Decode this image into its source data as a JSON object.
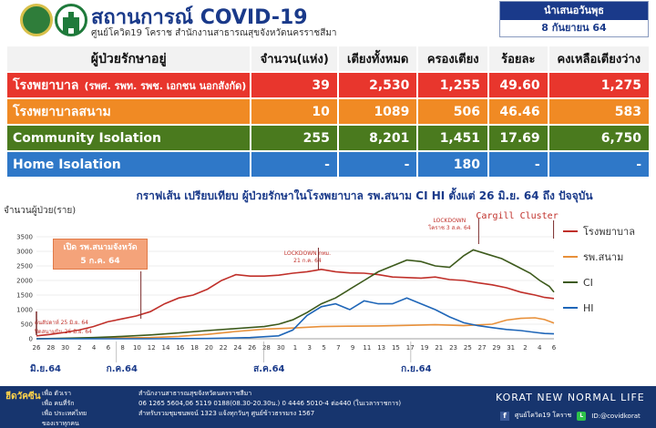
{
  "header": {
    "title": "สถานการณ์ COVID-19",
    "subtitle": "ศูนย์โควิด19 โคราช สำนักงานสาธารณสุขจังหวัดนครราชสีมา",
    "date_label": "นำเสนอวันพุธ",
    "date_value": "8 กันยายน 64"
  },
  "table": {
    "headers": [
      "ผู้ป่วยรักษาอยู่",
      "จำนวน(แห่ง)",
      "เตียงทั้งหมด",
      "ครองเตียง",
      "ร้อยละ",
      "คงเหลือเตียงว่าง"
    ],
    "rows": [
      {
        "label": "โรงพยาบาล",
        "sub": "(รพศ. รพท. รพช. เอกชน นอกสังกัด)",
        "count": "39",
        "beds": "2,530",
        "occupied": "1,255",
        "percent": "49.60",
        "available": "1,275",
        "color": "#e8362d"
      },
      {
        "label": "โรงพยาบาลสนาม",
        "sub": "",
        "count": "10",
        "beds": "1089",
        "occupied": "506",
        "percent": "46.46",
        "available": "583",
        "color": "#f08a24"
      },
      {
        "label": "Community Isolation",
        "sub": "",
        "count": "255",
        "beds": "8,201",
        "occupied": "1,451",
        "percent": "17.69",
        "available": "6,750",
        "color": "#4a7a1e"
      },
      {
        "label": "Home Isolation",
        "sub": "",
        "count": "-",
        "beds": "-",
        "occupied": "180",
        "percent": "-",
        "available": "-",
        "color": "#2f78c8"
      }
    ]
  },
  "chart_data": {
    "type": "line",
    "title": "กราฟเส้น เปรียบเทียบ ผู้ป่วยรักษาในโรงพยาบาล รพ.สนาม CI HI ตั้งแต่ 26 มิ.ย. 64 ถึง ปัจจุบัน",
    "ylabel": "จำนวนผู้ป่วย(ราย)",
    "xlabel": "",
    "ylim": [
      0,
      3500
    ],
    "yticks": [
      0,
      500,
      1000,
      1500,
      2000,
      2500,
      3000,
      3500
    ],
    "x_tick_labels": [
      "26",
      "28",
      "30",
      "2",
      "4",
      "6",
      "8",
      "10",
      "12",
      "14",
      "16",
      "18",
      "20",
      "22",
      "24",
      "26",
      "28",
      "30",
      "1",
      "3",
      "5",
      "7",
      "9",
      "11",
      "13",
      "15",
      "17",
      "19",
      "21",
      "23",
      "25",
      "27",
      "29",
      "31",
      "2",
      "4",
      "6"
    ],
    "months": [
      {
        "label": "มิ.ย.64",
        "index": 0
      },
      {
        "label": "ก.ค.64",
        "index": 18
      },
      {
        "label": "ส.ค.64",
        "index": 49
      },
      {
        "label": "ก.ย.64",
        "index": 80
      }
    ],
    "grid": true,
    "legend_position": "right",
    "series": [
      {
        "name": "โรงพยาบาล",
        "color": "#c0302a",
        "points": [
          [
            0,
            100
          ],
          [
            3,
            150
          ],
          [
            6,
            220
          ],
          [
            9,
            300
          ],
          [
            12,
            420
          ],
          [
            15,
            580
          ],
          [
            18,
            680
          ],
          [
            21,
            780
          ],
          [
            24,
            930
          ],
          [
            27,
            1200
          ],
          [
            30,
            1400
          ],
          [
            33,
            1500
          ],
          [
            36,
            1700
          ],
          [
            39,
            2000
          ],
          [
            42,
            2200
          ],
          [
            45,
            2150
          ],
          [
            48,
            2150
          ],
          [
            51,
            2180
          ],
          [
            54,
            2250
          ],
          [
            57,
            2300
          ],
          [
            60,
            2380
          ],
          [
            63,
            2300
          ],
          [
            66,
            2260
          ],
          [
            69,
            2250
          ],
          [
            72,
            2200
          ],
          [
            75,
            2120
          ],
          [
            78,
            2100
          ],
          [
            81,
            2080
          ],
          [
            84,
            2120
          ],
          [
            87,
            2030
          ],
          [
            90,
            2000
          ],
          [
            93,
            1920
          ],
          [
            96,
            1850
          ],
          [
            99,
            1750
          ],
          [
            102,
            1600
          ],
          [
            105,
            1500
          ],
          [
            107,
            1420
          ],
          [
            109,
            1380
          ]
        ]
      },
      {
        "name": "รพ.สนาม",
        "color": "#e8903a",
        "points": [
          [
            0,
            0
          ],
          [
            6,
            10
          ],
          [
            12,
            20
          ],
          [
            18,
            30
          ],
          [
            24,
            40
          ],
          [
            30,
            80
          ],
          [
            36,
            150
          ],
          [
            42,
            250
          ],
          [
            48,
            330
          ],
          [
            54,
            370
          ],
          [
            60,
            420
          ],
          [
            66,
            430
          ],
          [
            72,
            440
          ],
          [
            78,
            460
          ],
          [
            84,
            480
          ],
          [
            90,
            450
          ],
          [
            96,
            500
          ],
          [
            99,
            640
          ],
          [
            102,
            700
          ],
          [
            105,
            720
          ],
          [
            107,
            660
          ],
          [
            109,
            540
          ]
        ]
      },
      {
        "name": "CI",
        "color": "#3d5a1c",
        "points": [
          [
            0,
            0
          ],
          [
            6,
            20
          ],
          [
            12,
            40
          ],
          [
            18,
            80
          ],
          [
            24,
            130
          ],
          [
            30,
            200
          ],
          [
            36,
            280
          ],
          [
            42,
            350
          ],
          [
            48,
            420
          ],
          [
            51,
            500
          ],
          [
            54,
            650
          ],
          [
            57,
            900
          ],
          [
            60,
            1200
          ],
          [
            63,
            1400
          ],
          [
            66,
            1700
          ],
          [
            69,
            2000
          ],
          [
            72,
            2300
          ],
          [
            75,
            2500
          ],
          [
            78,
            2700
          ],
          [
            81,
            2650
          ],
          [
            84,
            2500
          ],
          [
            87,
            2450
          ],
          [
            90,
            2850
          ],
          [
            92,
            3050
          ],
          [
            95,
            2900
          ],
          [
            98,
            2750
          ],
          [
            101,
            2500
          ],
          [
            104,
            2250
          ],
          [
            106,
            2000
          ],
          [
            108,
            1800
          ],
          [
            109,
            1600
          ]
        ]
      },
      {
        "name": "HI",
        "color": "#1f66b8",
        "points": [
          [
            0,
            0
          ],
          [
            24,
            0
          ],
          [
            36,
            10
          ],
          [
            45,
            40
          ],
          [
            51,
            100
          ],
          [
            54,
            300
          ],
          [
            57,
            800
          ],
          [
            60,
            1100
          ],
          [
            63,
            1200
          ],
          [
            66,
            1000
          ],
          [
            69,
            1300
          ],
          [
            72,
            1200
          ],
          [
            75,
            1200
          ],
          [
            78,
            1400
          ],
          [
            81,
            1200
          ],
          [
            84,
            1000
          ],
          [
            87,
            750
          ],
          [
            90,
            550
          ],
          [
            93,
            450
          ],
          [
            96,
            380
          ],
          [
            99,
            320
          ],
          [
            102,
            280
          ],
          [
            105,
            220
          ],
          [
            107,
            180
          ],
          [
            109,
            170
          ]
        ]
      }
    ],
    "annotations": [
      {
        "text": "เปิด รพ.สนามจังหวัด",
        "text2": "5 ก.ค. 64",
        "x": 22
      },
      {
        "text": "LOCKDOWN กทม.",
        "text2": "21 ก.ค. 64",
        "x": 59
      },
      {
        "text": "LOCKDOWN",
        "text2": "โคราช 3 ส.ค. 64",
        "x": 87
      },
      {
        "text": "Cargill  Cluster",
        "text2": "",
        "x": 107
      },
      {
        "text": "ปิดสนามบิน 26 มิ.ย. 64",
        "text2": "",
        "x": 0
      },
      {
        "text": "ต้นสัปดาห์ 25 มิ.ย. 64",
        "text2": "",
        "x": 0
      }
    ]
  },
  "footer": {
    "brand": "ฮีดวัคซีน",
    "lines": [
      "เพื่อ ตัวเรา",
      "เพื่อ คนที่รัก",
      "เพื่อ ประเทศไทย",
      "ของเราทุกคน"
    ],
    "contact": [
      "สำนักงานสาธารณสุขจังหวัดนครราชสีมา",
      "06 1265 5604,06 5119 0188(08.30-20.30น.) 0 4446 5010-4 ต่อ440 (ในเวลาราชการ)",
      "สำหรับรวมชุมชนพจน์ 1323 แจ้งทุกวันๆ ศูนย์ข้าวธรรมรง 1567"
    ],
    "slogan": "KORAT NEW NORMAL LIFE",
    "facebook": "ศูนย์โควิด19 โคราช",
    "line_id": "ID:@covidkorat"
  }
}
